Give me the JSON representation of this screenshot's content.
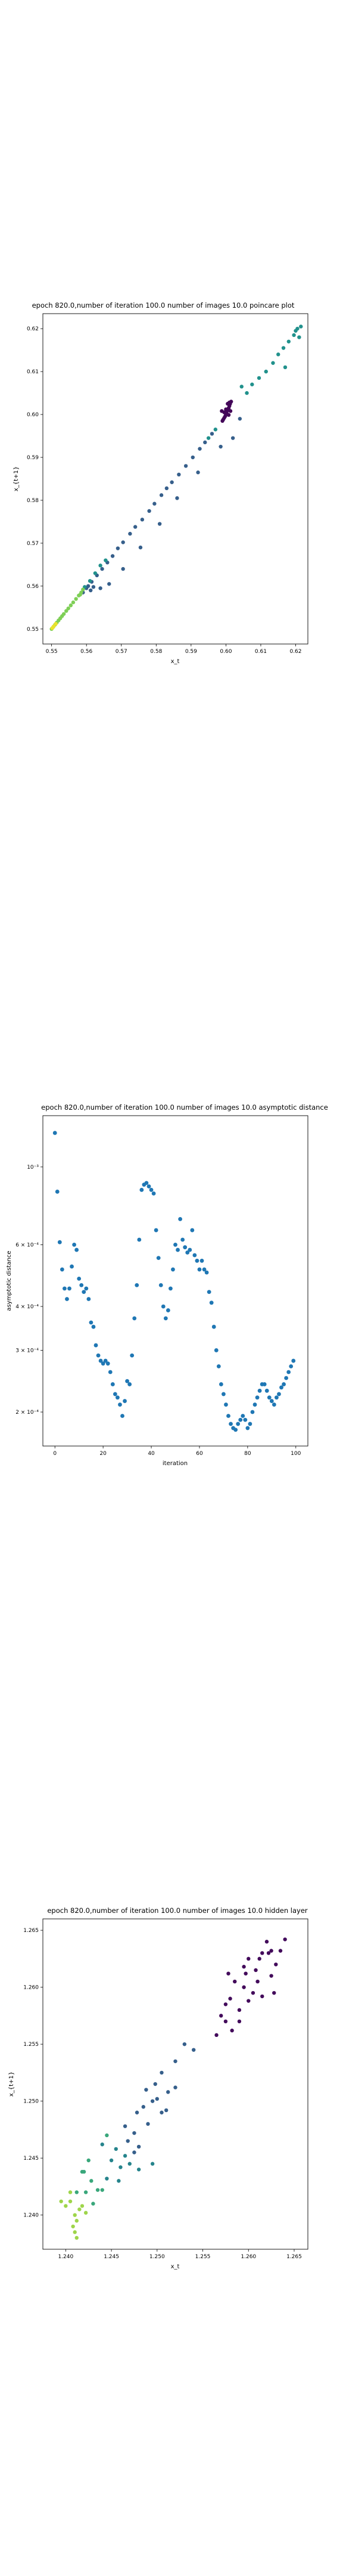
{
  "chart_data": [
    {
      "type": "scatter",
      "title": "epoch 820.0,number of iteration 100.0 number of images 10.0 poincare plot",
      "xlabel": "x_t",
      "ylabel": "x_{t+1}",
      "xlim": [
        0.5475,
        0.6235
      ],
      "ylim": [
        0.5465,
        0.6235
      ],
      "xticks": [
        0.55,
        0.56,
        0.57,
        0.58,
        0.59,
        0.6,
        0.61,
        0.62
      ],
      "yticks": [
        0.55,
        0.56,
        0.57,
        0.58,
        0.59,
        0.6,
        0.61,
        0.62
      ],
      "xticklabels": [
        "0.55",
        "0.56",
        "0.57",
        "0.58",
        "0.59",
        "0.60",
        "0.61",
        "0.62"
      ],
      "yticklabels": [
        "0.55",
        "0.56",
        "0.57",
        "0.58",
        "0.59",
        "0.60",
        "0.61",
        "0.62"
      ],
      "colormap": "viridis",
      "points": [
        [
          0.6015,
          0.603,
          0.02
        ],
        [
          0.6012,
          0.6025,
          0.02
        ],
        [
          0.601,
          0.602,
          0.02
        ],
        [
          0.6008,
          0.6015,
          0.02
        ],
        [
          0.6005,
          0.601,
          0.02
        ],
        [
          0.6002,
          0.6005,
          0.02
        ],
        [
          0.6,
          0.6,
          0.02
        ],
        [
          0.5998,
          0.5996,
          0.02
        ],
        [
          0.5995,
          0.5992,
          0.02
        ],
        [
          0.5992,
          0.5988,
          0.02
        ],
        [
          0.599,
          0.5985,
          0.02
        ],
        [
          0.6005,
          0.6025,
          0.02
        ],
        [
          0.6,
          0.6012,
          0.02
        ],
        [
          0.5995,
          0.6005,
          0.02
        ],
        [
          0.601,
          0.6028,
          0.02
        ],
        [
          0.5988,
          0.6008,
          0.02
        ],
        [
          0.6013,
          0.6008,
          0.02
        ],
        [
          0.6008,
          0.5999,
          0.02
        ],
        [
          0.5985,
          0.5925,
          0.3
        ],
        [
          0.596,
          0.5955,
          0.3
        ],
        [
          0.594,
          0.5935,
          0.3
        ],
        [
          0.5925,
          0.592,
          0.3
        ],
        [
          0.5905,
          0.59,
          0.3
        ],
        [
          0.5885,
          0.588,
          0.3
        ],
        [
          0.5865,
          0.586,
          0.3
        ],
        [
          0.5845,
          0.5842,
          0.3
        ],
        [
          0.583,
          0.5828,
          0.3
        ],
        [
          0.5815,
          0.5812,
          0.3
        ],
        [
          0.5795,
          0.5792,
          0.3
        ],
        [
          0.578,
          0.5775,
          0.3
        ],
        [
          0.576,
          0.5755,
          0.3
        ],
        [
          0.574,
          0.5738,
          0.3
        ],
        [
          0.5725,
          0.5722,
          0.3
        ],
        [
          0.5705,
          0.5702,
          0.3
        ],
        [
          0.569,
          0.5688,
          0.3
        ],
        [
          0.5675,
          0.567,
          0.3
        ],
        [
          0.566,
          0.5655,
          0.3
        ],
        [
          0.5645,
          0.564,
          0.3
        ],
        [
          0.563,
          0.5625,
          0.3
        ],
        [
          0.5615,
          0.561,
          0.3
        ],
        [
          0.56,
          0.5595,
          0.3
        ],
        [
          0.559,
          0.5585,
          0.3
        ],
        [
          0.592,
          0.5865,
          0.3
        ],
        [
          0.586,
          0.5805,
          0.3
        ],
        [
          0.581,
          0.5745,
          0.3
        ],
        [
          0.5755,
          0.569,
          0.3
        ],
        [
          0.5705,
          0.564,
          0.3
        ],
        [
          0.5665,
          0.5605,
          0.3
        ],
        [
          0.564,
          0.5595,
          0.3
        ],
        [
          0.562,
          0.5598,
          0.3
        ],
        [
          0.5612,
          0.559,
          0.3
        ],
        [
          0.5605,
          0.56,
          0.3
        ],
        [
          0.604,
          0.599,
          0.3
        ],
        [
          0.602,
          0.5945,
          0.3
        ],
        [
          0.6205,
          0.62,
          0.5
        ],
        [
          0.6195,
          0.6185,
          0.5
        ],
        [
          0.618,
          0.617,
          0.5
        ],
        [
          0.6165,
          0.6155,
          0.5
        ],
        [
          0.615,
          0.614,
          0.5
        ],
        [
          0.6135,
          0.612,
          0.5
        ],
        [
          0.6115,
          0.61,
          0.5
        ],
        [
          0.6095,
          0.6085,
          0.5
        ],
        [
          0.6075,
          0.607,
          0.5
        ],
        [
          0.606,
          0.605,
          0.5
        ],
        [
          0.62,
          0.6195,
          0.5
        ],
        [
          0.617,
          0.611,
          0.5
        ],
        [
          0.621,
          0.618,
          0.5
        ],
        [
          0.6215,
          0.6205,
          0.5
        ],
        [
          0.597,
          0.5965,
          0.5
        ],
        [
          0.595,
          0.5945,
          0.5
        ],
        [
          0.6045,
          0.6065,
          0.5
        ],
        [
          0.564,
          0.5648,
          0.5
        ],
        [
          0.5655,
          0.566,
          0.5
        ],
        [
          0.5625,
          0.563,
          0.5
        ],
        [
          0.561,
          0.5612,
          0.5
        ],
        [
          0.5595,
          0.5598,
          0.5
        ],
        [
          0.5585,
          0.5585,
          0.8
        ],
        [
          0.5578,
          0.5578,
          0.8
        ],
        [
          0.557,
          0.557,
          0.8
        ],
        [
          0.5562,
          0.5562,
          0.8
        ],
        [
          0.5555,
          0.5555,
          0.8
        ],
        [
          0.5548,
          0.5548,
          0.8
        ],
        [
          0.5542,
          0.5542,
          0.8
        ],
        [
          0.5535,
          0.5535,
          0.8
        ],
        [
          0.553,
          0.553,
          0.8
        ],
        [
          0.5525,
          0.5525,
          0.8
        ],
        [
          0.552,
          0.552,
          0.8
        ],
        [
          0.5515,
          0.5515,
          0.8
        ],
        [
          0.551,
          0.551,
          0.8
        ],
        [
          0.5505,
          0.5505,
          0.8
        ],
        [
          0.55,
          0.55,
          0.8
        ],
        [
          0.559,
          0.5592,
          0.8
        ],
        [
          0.5582,
          0.558,
          0.8
        ],
        [
          0.5512,
          0.5512,
          0.97
        ],
        [
          0.5506,
          0.5506,
          0.97
        ],
        [
          0.5502,
          0.5502,
          0.97
        ]
      ]
    },
    {
      "type": "scatter",
      "title": "epoch 820.0,number of iteration 100.0  number of images 10.0 asymptotic distance",
      "xlabel": "iteration",
      "ylabel": "asymptotic distance",
      "yscale": "log",
      "xlim": [
        -5,
        105
      ],
      "ylim": [
        0.00016,
        0.0014
      ],
      "xticks": [
        0,
        20,
        40,
        60,
        80,
        100
      ],
      "xticklabels": [
        "0",
        "20",
        "40",
        "60",
        "80",
        "100"
      ],
      "yticks": [
        0.0002,
        0.0003,
        0.0004,
        0.0006,
        0.001
      ],
      "yticklabels": [
        "2 × 10⁻⁴",
        "3 × 10⁻⁴",
        "4 × 10⁻⁴",
        "6 × 10⁻⁴",
        "10⁻³"
      ],
      "x": [
        0,
        1,
        2,
        3,
        4,
        5,
        6,
        7,
        8,
        9,
        10,
        11,
        12,
        13,
        14,
        15,
        16,
        17,
        18,
        19,
        20,
        21,
        22,
        23,
        24,
        25,
        26,
        27,
        28,
        29,
        30,
        31,
        32,
        33,
        34,
        35,
        36,
        37,
        38,
        39,
        40,
        41,
        42,
        43,
        44,
        45,
        46,
        47,
        48,
        49,
        50,
        51,
        52,
        53,
        54,
        55,
        56,
        57,
        58,
        59,
        60,
        61,
        62,
        63,
        64,
        65,
        66,
        67,
        68,
        69,
        70,
        71,
        72,
        73,
        74,
        75,
        76,
        77,
        78,
        79,
        80,
        81,
        82,
        83,
        84,
        85,
        86,
        87,
        88,
        89,
        90,
        91,
        92,
        93,
        94,
        95,
        96,
        97,
        98,
        99
      ],
      "y": [
        0.00125,
        0.00085,
        0.00061,
        0.00051,
        0.00045,
        0.00042,
        0.00045,
        0.00052,
        0.0006,
        0.00058,
        0.00048,
        0.00046,
        0.00044,
        0.00045,
        0.00042,
        0.00036,
        0.00035,
        0.00031,
        0.00029,
        0.00028,
        0.000275,
        0.00028,
        0.000275,
        0.00026,
        0.00024,
        0.000225,
        0.00022,
        0.00021,
        0.000195,
        0.000215,
        0.000245,
        0.00024,
        0.00029,
        0.00037,
        0.00046,
        0.00062,
        0.00086,
        0.00089,
        0.0009,
        0.00088,
        0.00086,
        0.00084,
        0.00066,
        0.00055,
        0.00046,
        0.0004,
        0.00037,
        0.00039,
        0.00045,
        0.00051,
        0.0006,
        0.00058,
        0.00071,
        0.00062,
        0.00059,
        0.00057,
        0.00058,
        0.00066,
        0.00056,
        0.00054,
        0.00051,
        0.00054,
        0.00051,
        0.0005,
        0.00044,
        0.00041,
        0.00035,
        0.0003,
        0.00027,
        0.00024,
        0.000225,
        0.00021,
        0.000195,
        0.000185,
        0.00018,
        0.000178,
        0.000185,
        0.00019,
        0.000195,
        0.00019,
        0.00018,
        0.000185,
        0.0002,
        0.00021,
        0.00022,
        0.00023,
        0.00024,
        0.00024,
        0.00023,
        0.00022,
        0.000215,
        0.00021,
        0.00022,
        0.000225,
        0.000235,
        0.00024,
        0.00025,
        0.00026,
        0.00027,
        0.00028
      ]
    },
    {
      "type": "scatter",
      "title": "epoch 820.0,number of iteration 100.0  number of images 10.0 hidden layer",
      "xlabel": "x_t",
      "ylabel": "x_{t+1}",
      "xlim": [
        1.2375,
        1.2665
      ],
      "ylim": [
        1.237,
        1.266
      ],
      "xticks": [
        1.24,
        1.245,
        1.25,
        1.255,
        1.26,
        1.265
      ],
      "yticks": [
        1.24,
        1.245,
        1.25,
        1.255,
        1.26,
        1.265
      ],
      "xticklabels": [
        "1.240",
        "1.245",
        "1.250",
        "1.255",
        "1.260",
        "1.265"
      ],
      "yticklabels": [
        "1.240",
        "1.245",
        "1.250",
        "1.255",
        "1.260",
        "1.265"
      ],
      "colormap": "viridis",
      "points": [
        [
          1.2615,
          1.263,
          0.03
        ],
        [
          1.263,
          1.262,
          0.03
        ],
        [
          1.262,
          1.264,
          0.03
        ],
        [
          1.26,
          1.2625,
          0.03
        ],
        [
          1.2625,
          1.261,
          0.03
        ],
        [
          1.261,
          1.2605,
          0.03
        ],
        [
          1.2605,
          1.2595,
          0.03
        ],
        [
          1.2595,
          1.26,
          0.03
        ],
        [
          1.26,
          1.2588,
          0.03
        ],
        [
          1.259,
          1.258,
          0.03
        ],
        [
          1.258,
          1.259,
          0.03
        ],
        [
          1.2585,
          1.2605,
          0.03
        ],
        [
          1.2578,
          1.2612,
          0.03
        ],
        [
          1.2595,
          1.2618,
          0.03
        ],
        [
          1.2612,
          1.2625,
          0.03
        ],
        [
          1.2635,
          1.2632,
          0.03
        ],
        [
          1.2625,
          1.2632,
          0.03
        ],
        [
          1.2608,
          1.2615,
          0.03
        ],
        [
          1.259,
          1.257,
          0.03
        ],
        [
          1.2582,
          1.2562,
          0.03
        ],
        [
          1.2575,
          1.257,
          0.03
        ],
        [
          1.257,
          1.2575,
          0.03
        ],
        [
          1.2615,
          1.2592,
          0.03
        ],
        [
          1.2628,
          1.2595,
          0.03
        ],
        [
          1.2575,
          1.2585,
          0.03
        ],
        [
          1.2565,
          1.2558,
          0.03
        ],
        [
          1.264,
          1.2642,
          0.03
        ],
        [
          1.2597,
          1.2612,
          0.03
        ],
        [
          1.2622,
          1.263,
          0.03
        ],
        [
          1.253,
          1.255,
          0.3
        ],
        [
          1.252,
          1.2535,
          0.3
        ],
        [
          1.2505,
          1.2525,
          0.3
        ],
        [
          1.2498,
          1.2515,
          0.3
        ],
        [
          1.2512,
          1.2508,
          0.3
        ],
        [
          1.2495,
          1.25,
          0.3
        ],
        [
          1.2485,
          1.2495,
          0.3
        ],
        [
          1.2478,
          1.249,
          0.3
        ],
        [
          1.249,
          1.248,
          0.3
        ],
        [
          1.2475,
          1.2472,
          0.3
        ],
        [
          1.2468,
          1.2465,
          0.3
        ],
        [
          1.248,
          1.246,
          0.3
        ],
        [
          1.2465,
          1.2478,
          0.3
        ],
        [
          1.25,
          1.2502,
          0.3
        ],
        [
          1.251,
          1.2492,
          0.3
        ],
        [
          1.2475,
          1.2455,
          0.3
        ],
        [
          1.254,
          1.2545,
          0.3
        ],
        [
          1.2488,
          1.251,
          0.3
        ],
        [
          1.252,
          1.2512,
          0.3
        ],
        [
          1.2505,
          1.249,
          0.3
        ],
        [
          1.2465,
          1.2452,
          0.45
        ],
        [
          1.2455,
          1.2458,
          0.45
        ],
        [
          1.246,
          1.2442,
          0.45
        ],
        [
          1.247,
          1.2445,
          0.45
        ],
        [
          1.248,
          1.244,
          0.45
        ],
        [
          1.2445,
          1.2432,
          0.45
        ],
        [
          1.2458,
          1.243,
          0.45
        ],
        [
          1.245,
          1.2448,
          0.45
        ],
        [
          1.244,
          1.2462,
          0.45
        ],
        [
          1.2495,
          1.2445,
          0.45
        ],
        [
          1.2435,
          1.2422,
          0.6
        ],
        [
          1.2428,
          1.243,
          0.6
        ],
        [
          1.2422,
          1.242,
          0.6
        ],
        [
          1.243,
          1.241,
          0.6
        ],
        [
          1.2418,
          1.2438,
          0.6
        ],
        [
          1.2425,
          1.2448,
          0.6
        ],
        [
          1.244,
          1.2422,
          0.6
        ],
        [
          1.2412,
          1.242,
          0.6
        ],
        [
          1.2445,
          1.247,
          0.6
        ],
        [
          1.242,
          1.2438,
          0.6
        ],
        [
          1.2415,
          1.2405,
          0.85
        ],
        [
          1.2405,
          1.2412,
          0.85
        ],
        [
          1.241,
          1.24,
          0.85
        ],
        [
          1.24,
          1.2408,
          0.85
        ],
        [
          1.2412,
          1.2395,
          0.85
        ],
        [
          1.2408,
          1.239,
          0.85
        ],
        [
          1.2418,
          1.2408,
          0.85
        ],
        [
          1.2395,
          1.2412,
          0.85
        ],
        [
          1.2422,
          1.2402,
          0.85
        ],
        [
          1.241,
          1.2385,
          0.85
        ],
        [
          1.2412,
          1.238,
          0.85
        ],
        [
          1.2405,
          1.242,
          0.85
        ]
      ]
    }
  ]
}
